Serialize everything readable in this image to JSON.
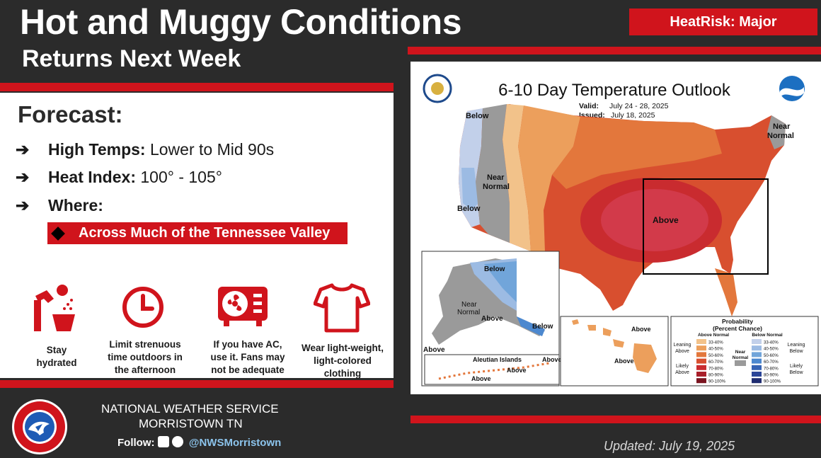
{
  "header": {
    "title": "Hot and Muggy Conditions",
    "subtitle": "Returns Next Week",
    "badge": "HeatRisk: Major"
  },
  "forecast": {
    "heading": "Forecast:",
    "items": [
      {
        "label": "High Temps:",
        "value": "Lower to Mid 90s"
      },
      {
        "label": "Heat Index:",
        "value": "100° - 105°"
      },
      {
        "label": "Where:",
        "value": ""
      }
    ],
    "where_value": "Across Much of the Tennessee Valley"
  },
  "tips": [
    {
      "icon": "water-fountain-icon",
      "text": [
        "Stay",
        "hydrated"
      ]
    },
    {
      "icon": "clock-icon",
      "text": [
        "Limit strenuous",
        "time outdoors in",
        "the afternoon"
      ]
    },
    {
      "icon": "air-conditioner-icon",
      "text": [
        "If you have AC,",
        "use it. Fans may",
        "not be adequate"
      ]
    },
    {
      "icon": "tshirt-icon",
      "text": [
        "Wear light-weight,",
        "light-colored",
        "clothing"
      ]
    }
  ],
  "map": {
    "title": "6-10 Day Temperature Outlook",
    "valid_label": "Valid:",
    "valid": "July 24 - 28, 2025",
    "issued_label": "Issued:",
    "issued": "July 18, 2025",
    "labels": {
      "below_nw": "Below",
      "below_w": "Below",
      "near_normal_w": "Near\nNormal",
      "near_normal_ne": "Near\nNormal",
      "above": "Above",
      "ak_below": "Below",
      "ak_near": "Near\nNormal",
      "ak_above": "Above",
      "ak_below_se": "Below",
      "ak_above_sw": "Above",
      "aleutian": "Aleutian Islands",
      "aleutian_above_1": "Above",
      "aleutian_above_2": "Above",
      "aleutian_above_3": "Above",
      "hi_above_1": "Above",
      "hi_above_2": "Above"
    },
    "legend": {
      "title": "Probability\n(Percent Chance)",
      "above_normal": "Above Normal",
      "below_normal": "Below Normal",
      "near_normal": "Near\nNormal",
      "leaning_above": "Leaning\nAbove",
      "likely_above": "Likely\nAbove",
      "leaning_below": "Leaning\nBelow",
      "likely_below": "Likely\nBelow",
      "ranges": [
        "33-40%",
        "40-50%",
        "50-60%",
        "60-70%",
        "70-80%",
        "80-90%",
        "90-100%"
      ],
      "above_colors": [
        "#f2c28a",
        "#ec9f5c",
        "#e3773c",
        "#d84f2f",
        "#c92b2f",
        "#a91f2a",
        "#7a1420"
      ],
      "below_colors": [
        "#c2d0ea",
        "#9cbbe3",
        "#71a5da",
        "#4c88cf",
        "#3663b4",
        "#2b4598",
        "#1f2c70"
      ],
      "near_color": "#9a9a9a"
    }
  },
  "footer": {
    "org": "NATIONAL WEATHER SERVICE",
    "office": "MORRISTOWN TN",
    "follow": "Follow:",
    "handle": "@NWSMorristown",
    "updated": "Updated: July 19, 2025",
    "logo_text": "NATIONAL WEATHER SERVICE"
  },
  "colors": {
    "accent_red": "#d0141c",
    "background": "#2b2b2b"
  }
}
